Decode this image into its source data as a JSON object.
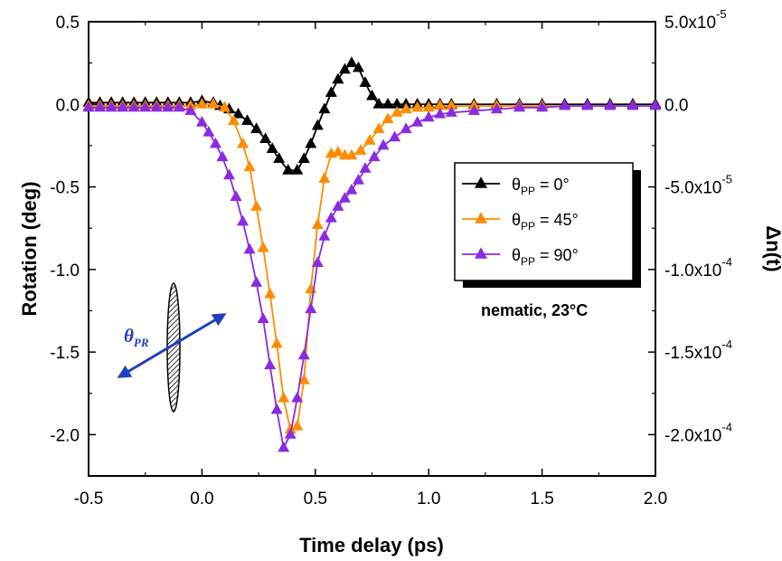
{
  "chart_data": {
    "type": "line",
    "xlabel": "Time delay (ps)",
    "ylabel": "Rotation (deg)",
    "y2label": "Δn(t)",
    "xlim": [
      -0.5,
      2.0
    ],
    "ylim": [
      -2.25,
      0.5
    ],
    "xticks": [
      "-0.5",
      "0.0",
      "0.5",
      "1.0",
      "1.5",
      "2.0"
    ],
    "yticks": [
      "0.5",
      "0.0",
      "-0.5",
      "-1.0",
      "-1.5",
      "-2.0"
    ],
    "y2ticks": [
      {
        "mantissa": "5.0x10",
        "exp": "-5"
      },
      {
        "mantissa": "0.0",
        "exp": ""
      },
      {
        "mantissa": "-5.0x10",
        "exp": "-5"
      },
      {
        "mantissa": "-1.0x10",
        "exp": "-4"
      },
      {
        "mantissa": "-1.5x10",
        "exp": "-4"
      },
      {
        "mantissa": "-2.0x10",
        "exp": "-4"
      }
    ],
    "grid": false,
    "legend_position": "right",
    "annotation": "nematic, 23°C",
    "inset_label": {
      "symbol": "θ",
      "sub": "PR"
    },
    "series": [
      {
        "symbol": "θ",
        "sub": "PP",
        "value_text": " = 0°",
        "color": "#000000",
        "points": [
          [
            -0.5,
            0.01
          ],
          [
            -0.45,
            0.01
          ],
          [
            -0.4,
            0.01
          ],
          [
            -0.35,
            0.01
          ],
          [
            -0.3,
            0.01
          ],
          [
            -0.25,
            0.01
          ],
          [
            -0.2,
            0.01
          ],
          [
            -0.15,
            0.01
          ],
          [
            -0.1,
            0.01
          ],
          [
            -0.05,
            0.01
          ],
          [
            0.0,
            0.02
          ],
          [
            0.05,
            0.01
          ],
          [
            0.08,
            -0.01
          ],
          [
            0.12,
            -0.03
          ],
          [
            0.16,
            -0.06
          ],
          [
            0.2,
            -0.1
          ],
          [
            0.24,
            -0.15
          ],
          [
            0.28,
            -0.21
          ],
          [
            0.31,
            -0.27
          ],
          [
            0.34,
            -0.33
          ],
          [
            0.38,
            -0.4
          ],
          [
            0.42,
            -0.4
          ],
          [
            0.45,
            -0.33
          ],
          [
            0.48,
            -0.24
          ],
          [
            0.51,
            -0.13
          ],
          [
            0.54,
            -0.03
          ],
          [
            0.57,
            0.07
          ],
          [
            0.6,
            0.15
          ],
          [
            0.63,
            0.21
          ],
          [
            0.66,
            0.25
          ],
          [
            0.69,
            0.22
          ],
          [
            0.72,
            0.13
          ],
          [
            0.75,
            0.05
          ],
          [
            0.78,
            0.0
          ],
          [
            0.82,
            0.0
          ],
          [
            0.86,
            0.0
          ],
          [
            0.9,
            0.0
          ],
          [
            0.95,
            0.0
          ],
          [
            1.0,
            0.0
          ],
          [
            1.05,
            0.0
          ],
          [
            1.1,
            0.0
          ],
          [
            1.2,
            0.0
          ],
          [
            1.3,
            0.0
          ],
          [
            1.4,
            0.0
          ],
          [
            1.5,
            0.0
          ],
          [
            1.6,
            0.0
          ],
          [
            1.7,
            0.0
          ],
          [
            1.8,
            0.0
          ],
          [
            1.9,
            0.0
          ],
          [
            2.0,
            0.0
          ]
        ]
      },
      {
        "symbol": "θ",
        "sub": "PP",
        "value_text": " = 45°",
        "color": "#ff8c00",
        "points": [
          [
            -0.5,
            -0.01
          ],
          [
            -0.45,
            -0.01
          ],
          [
            -0.4,
            -0.01
          ],
          [
            -0.35,
            -0.01
          ],
          [
            -0.3,
            -0.01
          ],
          [
            -0.25,
            -0.01
          ],
          [
            -0.2,
            -0.01
          ],
          [
            -0.15,
            -0.01
          ],
          [
            -0.1,
            -0.01
          ],
          [
            -0.05,
            -0.01
          ],
          [
            0.0,
            0.0
          ],
          [
            0.05,
            0.0
          ],
          [
            0.1,
            -0.02
          ],
          [
            0.14,
            -0.1
          ],
          [
            0.18,
            -0.24
          ],
          [
            0.21,
            -0.38
          ],
          [
            0.24,
            -0.62
          ],
          [
            0.27,
            -0.87
          ],
          [
            0.3,
            -1.15
          ],
          [
            0.33,
            -1.45
          ],
          [
            0.36,
            -1.78
          ],
          [
            0.39,
            -1.97
          ],
          [
            0.42,
            -1.95
          ],
          [
            0.45,
            -1.67
          ],
          [
            0.48,
            -1.12
          ],
          [
            0.51,
            -0.73
          ],
          [
            0.54,
            -0.45
          ],
          [
            0.57,
            -0.3
          ],
          [
            0.6,
            -0.29
          ],
          [
            0.63,
            -0.31
          ],
          [
            0.66,
            -0.31
          ],
          [
            0.7,
            -0.28
          ],
          [
            0.74,
            -0.22
          ],
          [
            0.78,
            -0.15
          ],
          [
            0.82,
            -0.09
          ],
          [
            0.86,
            -0.05
          ],
          [
            0.9,
            -0.03
          ],
          [
            0.95,
            -0.02
          ],
          [
            1.0,
            -0.02
          ],
          [
            1.05,
            -0.01
          ],
          [
            1.1,
            -0.01
          ],
          [
            1.2,
            -0.01
          ],
          [
            1.3,
            -0.01
          ],
          [
            1.4,
            -0.01
          ],
          [
            1.5,
            -0.01
          ],
          [
            1.6,
            -0.01
          ],
          [
            1.7,
            -0.01
          ],
          [
            1.8,
            -0.01
          ],
          [
            1.9,
            -0.01
          ],
          [
            2.0,
            -0.01
          ]
        ]
      },
      {
        "symbol": "θ",
        "sub": "PP",
        "value_text": " = 90°",
        "color": "#8a2be2",
        "points": [
          [
            -0.5,
            -0.02
          ],
          [
            -0.45,
            -0.02
          ],
          [
            -0.4,
            -0.02
          ],
          [
            -0.35,
            -0.02
          ],
          [
            -0.3,
            -0.02
          ],
          [
            -0.25,
            -0.02
          ],
          [
            -0.2,
            -0.02
          ],
          [
            -0.15,
            -0.02
          ],
          [
            -0.1,
            -0.02
          ],
          [
            -0.05,
            -0.04
          ],
          [
            0.0,
            -0.11
          ],
          [
            0.03,
            -0.17
          ],
          [
            0.06,
            -0.24
          ],
          [
            0.09,
            -0.32
          ],
          [
            0.12,
            -0.43
          ],
          [
            0.15,
            -0.56
          ],
          [
            0.18,
            -0.71
          ],
          [
            0.21,
            -0.88
          ],
          [
            0.24,
            -1.08
          ],
          [
            0.27,
            -1.3
          ],
          [
            0.3,
            -1.58
          ],
          [
            0.33,
            -1.85
          ],
          [
            0.36,
            -2.08
          ],
          [
            0.39,
            -2.0
          ],
          [
            0.42,
            -1.78
          ],
          [
            0.45,
            -1.52
          ],
          [
            0.48,
            -1.24
          ],
          [
            0.51,
            -0.96
          ],
          [
            0.54,
            -0.8
          ],
          [
            0.57,
            -0.69
          ],
          [
            0.6,
            -0.62
          ],
          [
            0.63,
            -0.57
          ],
          [
            0.66,
            -0.52
          ],
          [
            0.69,
            -0.46
          ],
          [
            0.72,
            -0.39
          ],
          [
            0.76,
            -0.32
          ],
          [
            0.8,
            -0.25
          ],
          [
            0.85,
            -0.2
          ],
          [
            0.9,
            -0.15
          ],
          [
            0.95,
            -0.11
          ],
          [
            1.0,
            -0.08
          ],
          [
            1.05,
            -0.06
          ],
          [
            1.1,
            -0.05
          ],
          [
            1.2,
            -0.04
          ],
          [
            1.3,
            -0.03
          ],
          [
            1.4,
            -0.02
          ],
          [
            1.5,
            -0.02
          ],
          [
            1.6,
            -0.01
          ],
          [
            1.7,
            -0.01
          ],
          [
            1.8,
            -0.01
          ],
          [
            1.9,
            -0.01
          ],
          [
            2.0,
            -0.01
          ]
        ]
      }
    ]
  }
}
